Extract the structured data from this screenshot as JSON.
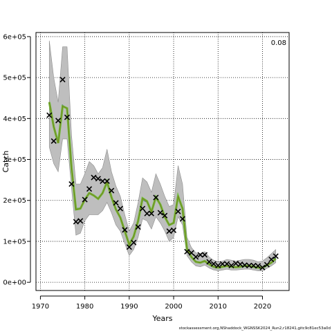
{
  "chart_data": {
    "type": "line",
    "xlabel": "Years",
    "ylabel": "Catch",
    "xlim": [
      1969,
      2026
    ],
    "ylim": [
      -20000,
      610000
    ],
    "x_ticks": [
      1970,
      1980,
      1990,
      2000,
      2010,
      2020
    ],
    "y_ticks": [
      0,
      100000,
      200000,
      300000,
      400000,
      500000,
      600000
    ],
    "y_tick_labels": [
      "0e+00",
      "1e+05",
      "2e+05",
      "3e+05",
      "4e+05",
      "5e+05",
      "6e+05"
    ],
    "grid": true,
    "annotation": "0.08",
    "colors": {
      "band": "#bebebe",
      "band_edge": "#8c8c8c",
      "fit_line": "#6fbf3a",
      "fit_core": "#7a7a1e",
      "alt_line": "#3a3aa0",
      "points": "#000000"
    },
    "series": [
      {
        "kind": "observed",
        "x": [
          1972,
          1973,
          1974,
          1975,
          1976,
          1977,
          1978,
          1979,
          1980,
          1981,
          1982,
          1983,
          1984,
          1985,
          1986,
          1987,
          1988,
          1989,
          1990,
          1991,
          1992,
          1993,
          1994,
          1995,
          1996,
          1997,
          1998,
          1999,
          2000,
          2001,
          2002,
          2003,
          2004,
          2005,
          2006,
          2007,
          2008,
          2009,
          2010,
          2011,
          2012,
          2013,
          2014,
          2015,
          2016,
          2017,
          2018,
          2019,
          2020,
          2021,
          2022,
          2023
        ],
        "y": [
          408000,
          345000,
          395000,
          495000,
          403000,
          240000,
          148000,
          150000,
          202000,
          228000,
          256000,
          253000,
          247000,
          247000,
          224000,
          194000,
          180000,
          128000,
          86000,
          97000,
          135000,
          180000,
          168000,
          168000,
          207000,
          170000,
          163000,
          125000,
          127000,
          173000,
          155000,
          75000,
          72000,
          62000,
          67000,
          67000,
          50000,
          45000,
          41000,
          45000,
          45000,
          41000,
          46000,
          44000,
          42000,
          41000,
          41000,
          40000,
          36000,
          43000,
          56000,
          64000
        ]
      },
      {
        "kind": "fitted",
        "x": [
          1972,
          1973,
          1974,
          1975,
          1976,
          1977,
          1978,
          1979,
          1980,
          1981,
          1982,
          1983,
          1984,
          1985,
          1986,
          1987,
          1988,
          1989,
          1990,
          1991,
          1992,
          1993,
          1994,
          1995,
          1996,
          1997,
          1998,
          1999,
          2000,
          2001,
          2002,
          2003,
          2004,
          2005,
          2006,
          2007,
          2008,
          2009,
          2010,
          2011,
          2012,
          2013,
          2014,
          2015,
          2016,
          2017,
          2018,
          2019,
          2020,
          2021,
          2022,
          2023
        ],
        "y": [
          440000,
          380000,
          340000,
          430000,
          425000,
          280000,
          178000,
          180000,
          202000,
          218000,
          212000,
          204000,
          218000,
          245000,
          208000,
          178000,
          158000,
          125000,
          92000,
          112000,
          150000,
          205000,
          198000,
          172000,
          208000,
          190000,
          160000,
          140000,
          145000,
          210000,
          180000,
          82000,
          62000,
          50000,
          48000,
          52000,
          44000,
          38000,
          36000,
          38000,
          40000,
          38000,
          37000,
          38000,
          40000,
          40000,
          38000,
          36000,
          36000,
          42000,
          48000,
          58000
        ]
      },
      {
        "kind": "alternative",
        "x": [
          1972,
          1973,
          1974,
          1975,
          1976,
          1977,
          1978,
          1979,
          1980,
          1981,
          1982,
          1983,
          1984,
          1985,
          1986,
          1987,
          1988,
          1989,
          1990,
          1991,
          1992,
          1993,
          1994,
          1995,
          1996,
          1997,
          1998,
          1999,
          2000,
          2001,
          2002,
          2003,
          2004,
          2005,
          2006,
          2007,
          2008,
          2009,
          2010,
          2011,
          2012,
          2013,
          2014,
          2015,
          2016,
          2017,
          2018,
          2019,
          2020,
          2021,
          2022,
          2023
        ],
        "y": [
          438000,
          378000,
          342000,
          432000,
          424000,
          282000,
          180000,
          181000,
          203000,
          219000,
          213000,
          205000,
          219000,
          246000,
          209000,
          179000,
          159000,
          126000,
          93000,
          113000,
          152000,
          202000,
          196000,
          173000,
          207000,
          189000,
          161000,
          141000,
          146000,
          209000,
          179000,
          83000,
          63000,
          51000,
          49000,
          53000,
          45000,
          39000,
          37000,
          39000,
          41000,
          39000,
          38000,
          39000,
          41000,
          41000,
          39000,
          35000,
          35000,
          43000,
          49000,
          60000
        ]
      }
    ],
    "band": {
      "x": [
        1972,
        1973,
        1974,
        1975,
        1976,
        1977,
        1978,
        1979,
        1980,
        1981,
        1982,
        1983,
        1984,
        1985,
        1986,
        1987,
        1988,
        1989,
        1990,
        1991,
        1992,
        1993,
        1994,
        1995,
        1996,
        1997,
        1998,
        1999,
        2000,
        2001,
        2002,
        2003,
        2004,
        2005,
        2006,
        2007,
        2008,
        2009,
        2010,
        2011,
        2012,
        2013,
        2014,
        2015,
        2016,
        2017,
        2018,
        2019,
        2020,
        2021,
        2022,
        2023
      ],
      "lower": [
        330000,
        290000,
        270000,
        350000,
        350000,
        230000,
        115000,
        120000,
        150000,
        165000,
        165000,
        165000,
        175000,
        195000,
        170000,
        140000,
        125000,
        95000,
        65000,
        80000,
        110000,
        155000,
        150000,
        130000,
        160000,
        145000,
        125000,
        100000,
        110000,
        160000,
        140000,
        65000,
        50000,
        40000,
        38000,
        42000,
        35000,
        30000,
        28000,
        30000,
        32000,
        30000,
        30000,
        31000,
        32000,
        32000,
        30000,
        28000,
        28000,
        34000,
        40000,
        48000
      ],
      "upper": [
        590000,
        500000,
        440000,
        575000,
        575000,
        360000,
        240000,
        240000,
        265000,
        295000,
        285000,
        265000,
        280000,
        325000,
        270000,
        235000,
        210000,
        165000,
        125000,
        145000,
        195000,
        255000,
        245000,
        220000,
        265000,
        240000,
        210000,
        185000,
        190000,
        285000,
        240000,
        110000,
        85000,
        72000,
        70000,
        75000,
        62000,
        54000,
        50000,
        52000,
        56000,
        54000,
        52000,
        54000,
        56000,
        56000,
        54000,
        50000,
        52000,
        60000,
        70000,
        80000
      ]
    }
  },
  "footer": "stockassessment.org,NShaddock_WGNSSK2024_Run2,r18241,gitc9c81ec53a0d"
}
